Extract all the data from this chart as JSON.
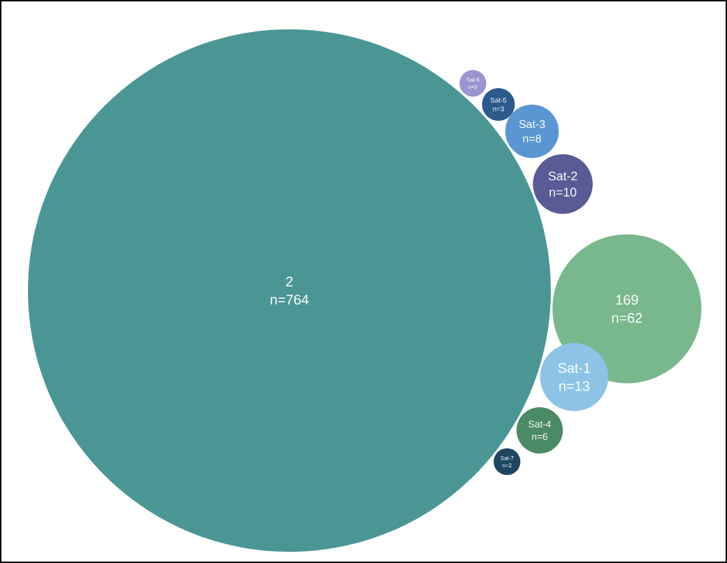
{
  "chart_data": {
    "type": "other",
    "categories": [
      "2",
      "Sat-6",
      "Sat-5",
      "Sat-3",
      "Sat-2",
      "169",
      "Sat-1",
      "Sat-4",
      "Sat-7"
    ],
    "values": [
      764,
      2,
      3,
      8,
      10,
      62,
      13,
      6,
      2
    ],
    "value_labels": [
      "n=764",
      "n=2",
      "n=3",
      "n=8",
      "n=10",
      "n=62",
      "n=13",
      "n=6",
      "n=2"
    ],
    "colors": [
      "#4a9695",
      "#9a94d0",
      "#2c5a8c",
      "#5a96d2",
      "#5a5a96",
      "#78b88c",
      "#8ec3e8",
      "#4a8a64",
      "#1e4660"
    ]
  }
}
